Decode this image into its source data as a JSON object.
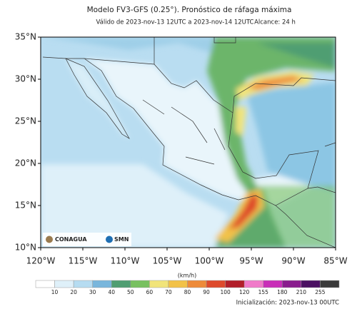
{
  "header": {
    "title": "Modelo FV3-GFS (0.25°). Pronóstico de ráfaga máxima",
    "valid": "Válido de 2023-nov-13 12UTC a 2023-nov-14 12UTC",
    "range": "Alcance: 24 h"
  },
  "map": {
    "lon_labels": [
      "120°W",
      "115°W",
      "110°W",
      "105°W",
      "100°W",
      "95°W",
      "90°W",
      "85°W"
    ],
    "lat_labels": [
      "35°N",
      "30°N",
      "25°N",
      "20°N",
      "15°N",
      "10°N"
    ],
    "logos": [
      "CONAGUA",
      "SMN"
    ]
  },
  "colorbar": {
    "unit": "(km/h)",
    "ticks": [
      10,
      20,
      30,
      40,
      50,
      60,
      70,
      80,
      90,
      100,
      120,
      155,
      180,
      210,
      255
    ],
    "colors": [
      "#ffffff",
      "#dff0f9",
      "#b6dcf1",
      "#79b6dc",
      "#4f9e72",
      "#78c160",
      "#f1e47a",
      "#f2c248",
      "#ee8b3a",
      "#de4a2c",
      "#b21f2a",
      "#f07ac9",
      "#c92fb8",
      "#8a1d8e",
      "#4b1062",
      "#3a3a3a"
    ]
  },
  "footer": {
    "init": "Inicialización: 2023-nov-13 00UTC"
  }
}
